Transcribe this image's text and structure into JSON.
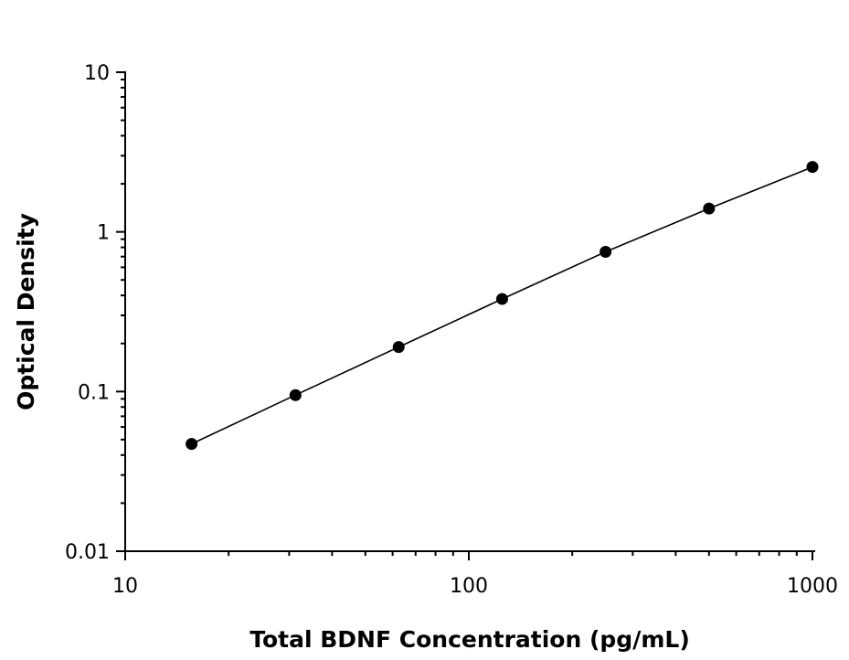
{
  "chart_data": {
    "type": "scatter",
    "title": "",
    "xlabel": "Total BDNF Concentration (pg/mL)",
    "ylabel": "Optical Density",
    "x_scale": "log",
    "y_scale": "log",
    "xlim": [
      10,
      1000
    ],
    "ylim": [
      0.01,
      10
    ],
    "x_ticks": [
      {
        "value": 10,
        "label": "10"
      },
      {
        "value": 100,
        "label": "100"
      },
      {
        "value": 1000,
        "label": "1000"
      }
    ],
    "y_ticks": [
      {
        "value": 0.01,
        "label": "0.01"
      },
      {
        "value": 0.1,
        "label": "0.1"
      },
      {
        "value": 1,
        "label": "1"
      },
      {
        "value": 10,
        "label": "10"
      }
    ],
    "grid": false,
    "legend": "none",
    "series": [
      {
        "x": [
          15.6,
          31.3,
          62.5,
          125,
          250,
          500,
          1000
        ],
        "y": [
          0.047,
          0.095,
          0.19,
          0.38,
          0.75,
          1.4,
          2.55
        ],
        "marker": "circle",
        "color": "#000000",
        "fit_line": true
      }
    ]
  }
}
